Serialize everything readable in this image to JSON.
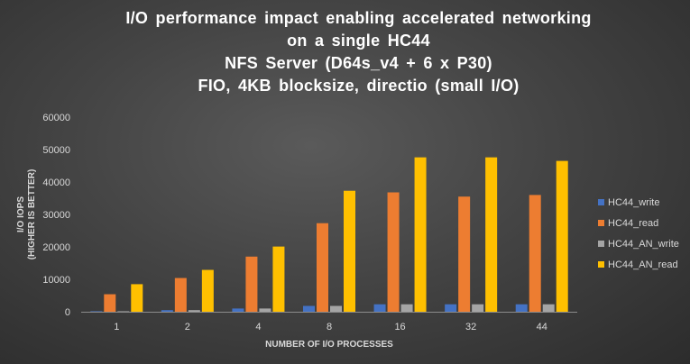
{
  "chart_data": {
    "type": "bar",
    "title_lines": [
      "I/O performance  impact  enabling  accelerated  networking",
      "on a single  HC44",
      "NFS Server  (D64s_v4  + 6 x P30)",
      "FIO, 4KB blocksize,  directio  (small  I/O)"
    ],
    "xlabel": "NUMBER OF I/O PROCESSES",
    "ylabel_lines": [
      "I/O IOPS",
      "(HIGHER IS BETTER)"
    ],
    "categories": [
      "1",
      "2",
      "4",
      "8",
      "16",
      "32",
      "44"
    ],
    "ylim": [
      0,
      60000
    ],
    "yticks": [
      0,
      10000,
      20000,
      30000,
      40000,
      50000,
      60000
    ],
    "grid": false,
    "legend_position": "right",
    "series": [
      {
        "name": "HC44_write",
        "color": "#4472c4",
        "values": [
          150,
          500,
          1000,
          1800,
          2300,
          2300,
          2300
        ]
      },
      {
        "name": "HC44_read",
        "color": "#ed7d31",
        "values": [
          5400,
          10400,
          17000,
          27300,
          36800,
          35500,
          36000
        ]
      },
      {
        "name": "HC44_AN_write",
        "color": "#a5a5a5",
        "values": [
          150,
          500,
          1000,
          1800,
          2300,
          2300,
          2300
        ]
      },
      {
        "name": "HC44_AN_read",
        "color": "#ffc000",
        "values": [
          8500,
          12900,
          20100,
          37300,
          47600,
          47600,
          46500
        ]
      }
    ]
  }
}
